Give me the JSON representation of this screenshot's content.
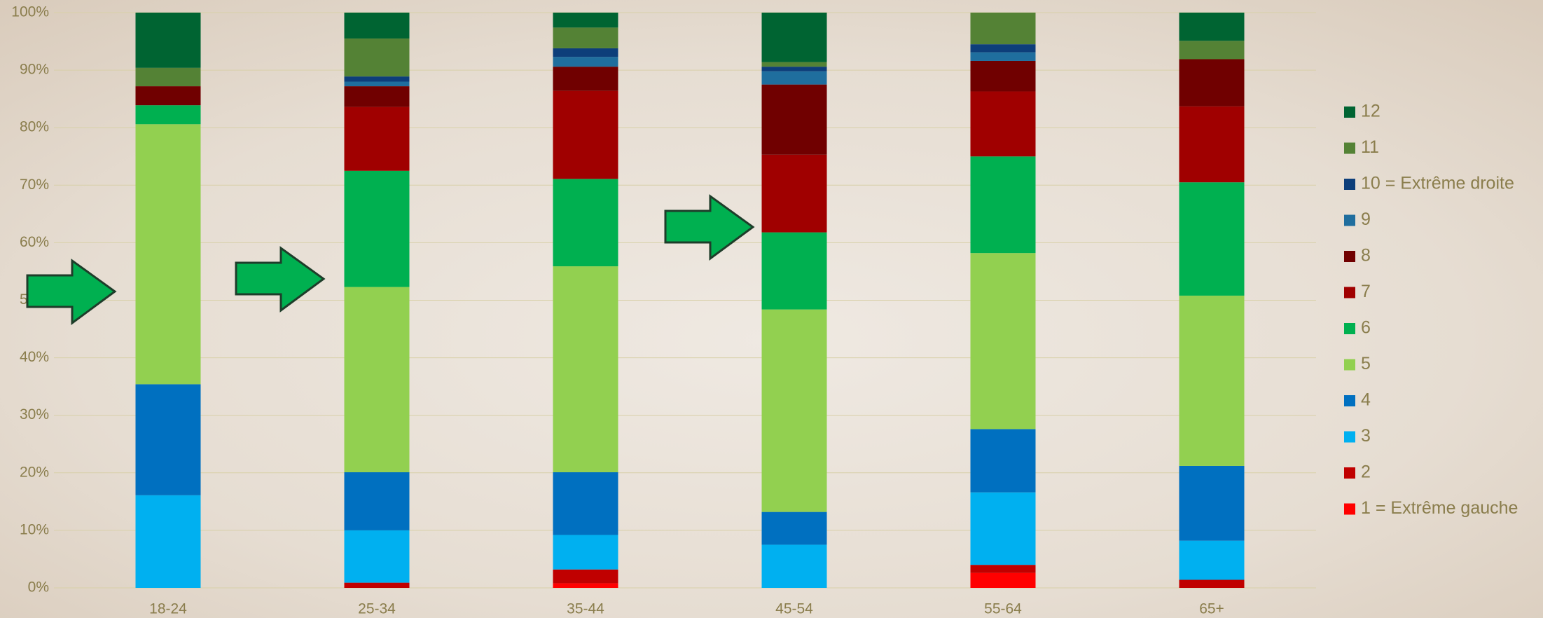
{
  "chart_data": {
    "type": "stacked_bar",
    "categories": [
      "18-24",
      "25-34",
      "35-44",
      "45-54",
      "55-64",
      "65+"
    ],
    "series": [
      {
        "name": "1 = Extrême gauche",
        "color": "#ff0000",
        "values": [
          0,
          0,
          0.8,
          0,
          2.6,
          0
        ]
      },
      {
        "name": "2",
        "color": "#c00000",
        "values": [
          0,
          0.9,
          2.4,
          0,
          1.4,
          1.4
        ]
      },
      {
        "name": "3",
        "color": "#00b0f0",
        "values": [
          16.1,
          9.1,
          6.0,
          7.5,
          12.6,
          6.8
        ]
      },
      {
        "name": "4",
        "color": "#0070c0",
        "values": [
          19.3,
          10.1,
          10.9,
          5.7,
          11.0,
          13.0
        ]
      },
      {
        "name": "5",
        "color": "#92d050",
        "values": [
          45.2,
          32.2,
          35.8,
          35.2,
          30.6,
          29.6
        ]
      },
      {
        "name": "6",
        "color": "#00b050",
        "values": [
          3.3,
          20.2,
          15.2,
          13.4,
          16.8,
          19.7
        ]
      },
      {
        "name": "7",
        "color": "#a00000",
        "values": [
          0,
          11.1,
          15.3,
          13.5,
          11.3,
          13.2
        ]
      },
      {
        "name": "8",
        "color": "#700000",
        "values": [
          3.3,
          3.6,
          4.2,
          12.2,
          5.3,
          8.2
        ]
      },
      {
        "name": "9",
        "color": "#1f6e9e",
        "values": [
          0,
          0.8,
          1.7,
          2.3,
          1.5,
          0
        ]
      },
      {
        "name": "10 = Extrême droite",
        "color": "#0d3e7a",
        "values": [
          0,
          0.9,
          1.5,
          0.8,
          1.4,
          0
        ]
      },
      {
        "name": "11",
        "color": "#548235",
        "values": [
          3.2,
          6.6,
          3.6,
          0.8,
          5.5,
          3.2
        ]
      },
      {
        "name": "12",
        "color": "#006432",
        "values": [
          9.6,
          4.5,
          2.6,
          8.6,
          0,
          4.9
        ]
      }
    ],
    "ylim": [
      0,
      100
    ],
    "yticks": [
      {
        "value": 0,
        "label": "0%"
      },
      {
        "value": 10,
        "label": "10%"
      },
      {
        "value": 20,
        "label": "20%"
      },
      {
        "value": 30,
        "label": "30%"
      },
      {
        "value": 40,
        "label": "40%"
      },
      {
        "value": 50,
        "label": "50%"
      },
      {
        "value": 60,
        "label": "60%"
      },
      {
        "value": 70,
        "label": "70%"
      },
      {
        "value": 80,
        "label": "80%"
      },
      {
        "value": 90,
        "label": "90%"
      },
      {
        "value": 100,
        "label": "100%"
      }
    ],
    "grid": true,
    "legend": "right"
  }
}
